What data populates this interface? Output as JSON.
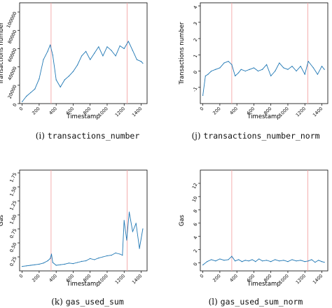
{
  "captions": [
    {
      "letter": "(i)",
      "name": "transactions_number"
    },
    {
      "letter": "(j)",
      "name": "transactions_number_norm"
    },
    {
      "letter": "(k)",
      "name": "gas_used_sum"
    },
    {
      "letter": "(l)",
      "name": "gas_used_sum_norm"
    }
  ],
  "chart_data": [
    {
      "type": "line",
      "xlabel": "Timestamp",
      "ylabel": "Transactions number",
      "xlim": [
        -30,
        1470
      ],
      "ylim": [
        0,
        110000
      ],
      "xticks": [
        0,
        200,
        400,
        600,
        800,
        1000,
        1200,
        1400
      ],
      "yticks": [
        0,
        20000,
        40000,
        60000,
        80000,
        100000
      ],
      "vlines": [
        340,
        1235
      ],
      "line_color": "#1f77b4",
      "vline_color": "#f4a6a6",
      "series": [
        {
          "x": [
            0,
            50,
            100,
            150,
            200,
            250,
            300,
            330,
            360,
            400,
            450,
            500,
            550,
            600,
            650,
            700,
            750,
            800,
            850,
            900,
            950,
            1000,
            1050,
            1100,
            1150,
            1200,
            1250,
            1300,
            1350,
            1400,
            1420
          ],
          "y": [
            2000,
            8000,
            12000,
            16000,
            27000,
            48000,
            57000,
            64000,
            53000,
            26000,
            18000,
            26000,
            30000,
            35000,
            42000,
            52000,
            57000,
            48000,
            55000,
            62000,
            52000,
            62000,
            58000,
            52000,
            63000,
            60000,
            68000,
            58000,
            48000,
            46000,
            44000
          ]
        }
      ]
    },
    {
      "type": "line",
      "xlabel": "Timestamp",
      "ylabel": "Transactions number",
      "xlim": [
        -30,
        1470
      ],
      "ylim": [
        -2,
        4.2
      ],
      "xticks": [
        0,
        200,
        400,
        600,
        800,
        1000,
        1200,
        1400
      ],
      "yticks": [
        -1,
        0,
        1,
        2,
        3,
        4
      ],
      "vlines": [
        340,
        1235
      ],
      "line_color": "#1f77b4",
      "vline_color": "#f4a6a6",
      "series": [
        {
          "x": [
            0,
            30,
            60,
            100,
            150,
            200,
            250,
            300,
            340,
            380,
            420,
            450,
            500,
            550,
            600,
            650,
            700,
            750,
            800,
            850,
            900,
            950,
            1000,
            1050,
            1100,
            1150,
            1200,
            1240,
            1300,
            1350,
            1400,
            1430
          ],
          "y": [
            -1.5,
            -0.3,
            -0.2,
            0,
            0.1,
            0.2,
            0.5,
            0.6,
            0.4,
            -0.3,
            -0.1,
            0.1,
            0,
            0.1,
            0.2,
            0,
            0.1,
            0.4,
            -0.3,
            0,
            0.5,
            0.2,
            0.1,
            0.3,
            0,
            0.3,
            -0.2,
            0.6,
            0.2,
            -0.2,
            0.3,
            0.1
          ]
        }
      ]
    },
    {
      "type": "line",
      "xlabel": "Timestamp",
      "ylabel": "Gas",
      "xlim": [
        -30,
        1470
      ],
      "ylim": [
        0,
        1.8
      ],
      "xticks": [
        0,
        200,
        400,
        600,
        800,
        1000,
        1200,
        1400
      ],
      "yticks": [
        0.25,
        0.5,
        0.75,
        1.0,
        1.25,
        1.5,
        1.75
      ],
      "ytick_labels": [
        "0.25",
        "0.50",
        "0.75",
        "1.00",
        "1.25",
        "1.50",
        "1.75"
      ],
      "vlines": [
        340,
        1235
      ],
      "line_color": "#1f77b4",
      "vline_color": "#f4a6a6",
      "series": [
        {
          "x": [
            0,
            50,
            100,
            150,
            200,
            250,
            300,
            330,
            345,
            360,
            400,
            450,
            500,
            550,
            600,
            650,
            700,
            750,
            800,
            850,
            900,
            950,
            1000,
            1050,
            1100,
            1150,
            1180,
            1200,
            1230,
            1260,
            1300,
            1340,
            1380,
            1420
          ],
          "y": [
            0.08,
            0.09,
            0.1,
            0.11,
            0.12,
            0.14,
            0.18,
            0.22,
            0.3,
            0.15,
            0.1,
            0.11,
            0.12,
            0.14,
            0.13,
            0.15,
            0.17,
            0.18,
            0.22,
            0.2,
            0.23,
            0.25,
            0.27,
            0.28,
            0.32,
            0.3,
            0.28,
            0.9,
            0.55,
            1.05,
            0.7,
            0.85,
            0.4,
            0.75
          ]
        }
      ]
    },
    {
      "type": "line",
      "xlabel": "Timestamp",
      "ylabel": "Gas",
      "xlim": [
        -30,
        1470
      ],
      "ylim": [
        -1.2,
        14
      ],
      "xticks": [
        0,
        200,
        400,
        600,
        800,
        1000,
        1200,
        1400
      ],
      "yticks": [
        0,
        2,
        4,
        6,
        8,
        10,
        12
      ],
      "vlines": [
        340,
        1235
      ],
      "line_color": "#1f77b4",
      "vline_color": "#f4a6a6",
      "series": [
        {
          "x": [
            0,
            50,
            100,
            150,
            200,
            250,
            300,
            340,
            380,
            420,
            460,
            500,
            540,
            580,
            620,
            660,
            700,
            750,
            800,
            850,
            900,
            950,
            1000,
            1050,
            1100,
            1150,
            1200,
            1240,
            1280,
            1320,
            1360,
            1400,
            1430
          ],
          "y": [
            -0.3,
            0.2,
            0.5,
            0.3,
            0.6,
            0.4,
            0.5,
            1.0,
            0.3,
            0.5,
            0.2,
            0.4,
            0.3,
            0.5,
            0.2,
            0.6,
            0.3,
            0.4,
            0.2,
            0.5,
            0.3,
            0.4,
            0.2,
            0.5,
            0.3,
            0.4,
            0.2,
            0.3,
            0.5,
            0.1,
            0.4,
            0.2,
            0.1
          ]
        }
      ]
    }
  ]
}
